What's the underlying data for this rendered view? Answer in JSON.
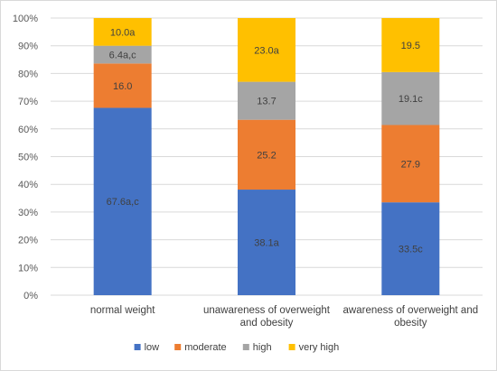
{
  "chart_data": {
    "type": "bar",
    "stacked": true,
    "percent": true,
    "title": "",
    "xlabel": "",
    "ylabel": "",
    "ylim": [
      0,
      100
    ],
    "yticks": [
      "0%",
      "10%",
      "20%",
      "30%",
      "40%",
      "50%",
      "60%",
      "70%",
      "80%",
      "90%",
      "100%"
    ],
    "grid": true,
    "legend_position": "bottom",
    "categories": [
      [
        "normal weight"
      ],
      [
        "unawareness of overweight",
        "and obesity"
      ],
      [
        "awareness of overweight and",
        "obesity"
      ]
    ],
    "series": [
      {
        "name": "low",
        "color": "#4472C4",
        "values": [
          67.6,
          38.1,
          33.5
        ],
        "labels": [
          "67.6a,c",
          "38.1a",
          "33.5c"
        ]
      },
      {
        "name": "moderate",
        "color": "#ED7D31",
        "values": [
          16.0,
          25.2,
          27.9
        ],
        "labels": [
          "16.0",
          "25.2",
          "27.9"
        ]
      },
      {
        "name": "high",
        "color": "#A5A5A5",
        "values": [
          6.4,
          13.7,
          19.1
        ],
        "labels": [
          "6.4a,c",
          "13.7",
          "19.1c"
        ]
      },
      {
        "name": "very high",
        "color": "#FFC000",
        "values": [
          10.0,
          23.0,
          19.5
        ],
        "labels": [
          "10.0a",
          "23.0a",
          "19.5"
        ]
      }
    ]
  }
}
